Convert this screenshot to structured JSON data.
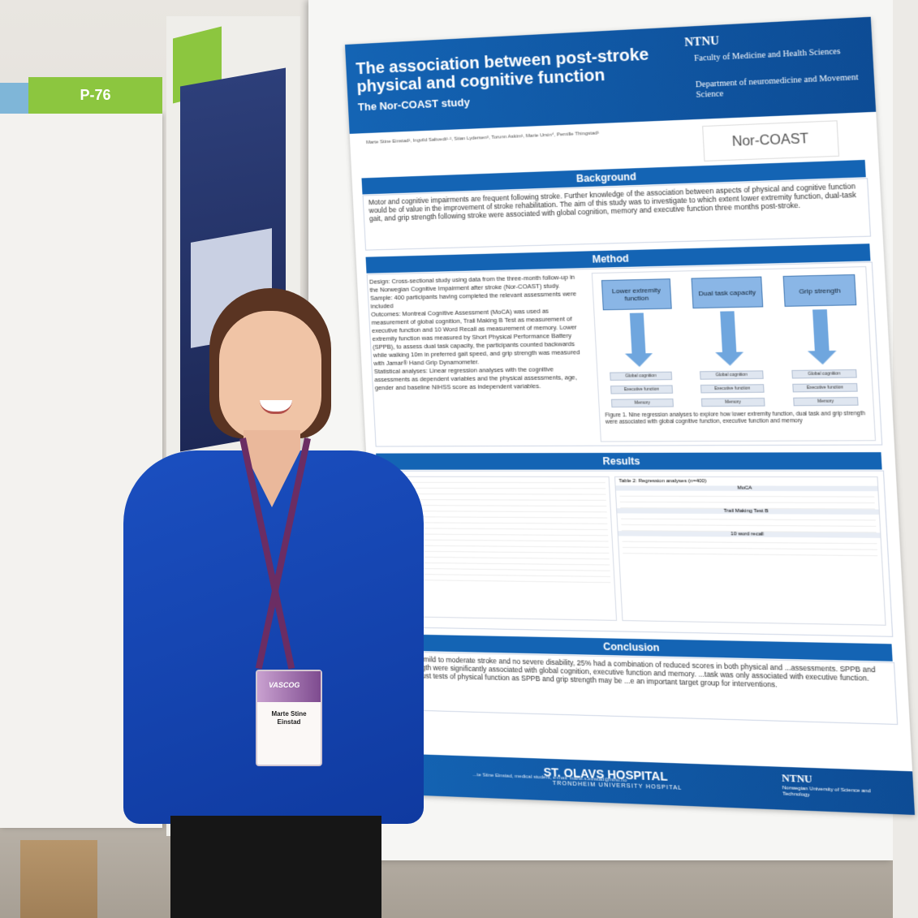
{
  "labels": {
    "p76": "P-76"
  },
  "poster": {
    "title": "The association between post-stroke physical and cognitive function",
    "subtitle": "The Nor-COAST study",
    "ntnu": "NTNU",
    "faculty": "Faculty of Medicine and Health Sciences",
    "department": "Department of neuromedicine and Movement Science",
    "norcoast_logo": "Nor-COAST",
    "authors": "Marte Stine Einstad¹, Ingvild Saltvedt¹·², Stian Lydersen³, Torunn Askim¹, Marie Ursin⁴, Pernille Thingstad¹",
    "sections": {
      "background": "Background",
      "method": "Method",
      "results": "Results",
      "conclusion": "Conclusion"
    },
    "background_text": "Motor and cognitive impairments are frequent following stroke. Further knowledge of the association between aspects of physical and cognitive function would be of value in the improvement of stroke rehabilitation. The aim of this study was to investigate to which extent lower extremity function, dual-task gait, and grip strength following stroke were associated with global cognition, memory and executive function three months post-stroke.",
    "method_design": "Design: Cross-sectional study using data from the three-month follow-up in the Norwegian Cognitive Impairment after stroke (Nor-COAST) study.",
    "method_sample": "Sample: 400 participants having completed the relevant assessments were included",
    "method_outcomes": "Outcomes: Montreal Cognitive Assessment (MoCA) was used as measurement of global cognition, Trail Making B Test as measurement of executive function and 10 Word Recall as measurement of memory. Lower extremity function was measured by Short Physical Performance Battery (SPPB), to assess dual task capacity, the participants counted backwards while walking 10m in preferred gait speed, and grip strength was measured with Jamar® Hand Grip Dynamometer.",
    "method_stats": "Statistical analyses: Linear regression analyses with the cognitive assessments as dependent variables and the physical assessments, age, gender and baseline NIHSS score as independent variables.",
    "diagram": {
      "boxes": [
        "Lower extremity function",
        "Dual task capacity",
        "Grip strength"
      ],
      "outcomes": [
        "Global cognition",
        "Executive function",
        "Memory"
      ],
      "caption": "Figure 1. Nine regression analyses to explore how lower extremity function, dual task and grip strength were associated with global cognitive function, executive function and memory"
    },
    "results_table2_title": "Table 2: Regression analyses (n=400)",
    "results_moca": "MoCA",
    "results_tmt": "Trail Making Test B",
    "results_recall": "10 word recall",
    "conclusion_text": "...ion with mild to moderate stroke and no severe disability, 25% had a combination of reduced scores in both physical and ...assessments. SPPB and grip strength were significantly associated with global cognition, executive function and memory. ...task was only associated with executive function. Easy, robust tests of physical function as SPPB and grip strength may be ...e an important target group for interventions.",
    "footer_hospital": "ST. OLAVS HOSPITAL",
    "footer_hospital_sub": "TRONDHEIM UNIVERSITY HOSPITAL",
    "footer_email": "...te Stine Einstad, medical student, e-mail: marte.s.einstad@ntnu.no",
    "footer_ntnu": "NTNU",
    "footer_ntnu_sub": "Norwegian University of Science and Technology"
  },
  "badge": {
    "event": "VASCOG",
    "name": "Marte Stine Einstad"
  }
}
